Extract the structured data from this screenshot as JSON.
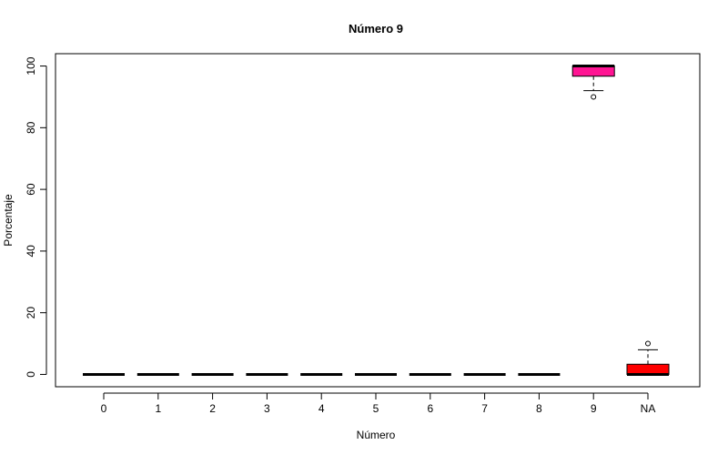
{
  "chart_data": {
    "type": "boxplot",
    "title": "Número 9",
    "xlabel": "Número",
    "ylabel": "Porcentaje",
    "ylim": [
      -4,
      104
    ],
    "yticks": [
      0,
      20,
      40,
      60,
      80,
      100
    ],
    "categories": [
      "0",
      "1",
      "2",
      "3",
      "4",
      "5",
      "6",
      "7",
      "8",
      "9",
      "NA"
    ],
    "boxes": [
      {
        "category": "0",
        "q1": 0,
        "median": 0,
        "q3": 0,
        "whisker_low": 0,
        "whisker_high": 0,
        "outliers": [],
        "color": "#000000"
      },
      {
        "category": "1",
        "q1": 0,
        "median": 0,
        "q3": 0,
        "whisker_low": 0,
        "whisker_high": 0,
        "outliers": [],
        "color": "#000000"
      },
      {
        "category": "2",
        "q1": 0,
        "median": 0,
        "q3": 0,
        "whisker_low": 0,
        "whisker_high": 0,
        "outliers": [],
        "color": "#000000"
      },
      {
        "category": "3",
        "q1": 0,
        "median": 0,
        "q3": 0,
        "whisker_low": 0,
        "whisker_high": 0,
        "outliers": [],
        "color": "#000000"
      },
      {
        "category": "4",
        "q1": 0,
        "median": 0,
        "q3": 0,
        "whisker_low": 0,
        "whisker_high": 0,
        "outliers": [],
        "color": "#000000"
      },
      {
        "category": "5",
        "q1": 0,
        "median": 0,
        "q3": 0,
        "whisker_low": 0,
        "whisker_high": 0,
        "outliers": [],
        "color": "#000000"
      },
      {
        "category": "6",
        "q1": 0,
        "median": 0,
        "q3": 0,
        "whisker_low": 0,
        "whisker_high": 0,
        "outliers": [],
        "color": "#000000"
      },
      {
        "category": "7",
        "q1": 0,
        "median": 0,
        "q3": 0,
        "whisker_low": 0,
        "whisker_high": 0,
        "outliers": [],
        "color": "#000000"
      },
      {
        "category": "8",
        "q1": 0,
        "median": 0,
        "q3": 0,
        "whisker_low": 0,
        "whisker_high": 0,
        "outliers": [],
        "color": "#000000"
      },
      {
        "category": "9",
        "q1": 96.7,
        "median": 100,
        "q3": 100,
        "whisker_low": 92,
        "whisker_high": 100,
        "outliers": [
          90
        ],
        "color": "#FF1493"
      },
      {
        "category": "NA",
        "q1": 0,
        "median": 0,
        "q3": 3.3,
        "whisker_low": 0,
        "whisker_high": 8,
        "outliers": [
          10
        ],
        "color": "#FF0000"
      }
    ],
    "grid": false,
    "legend": "none"
  }
}
